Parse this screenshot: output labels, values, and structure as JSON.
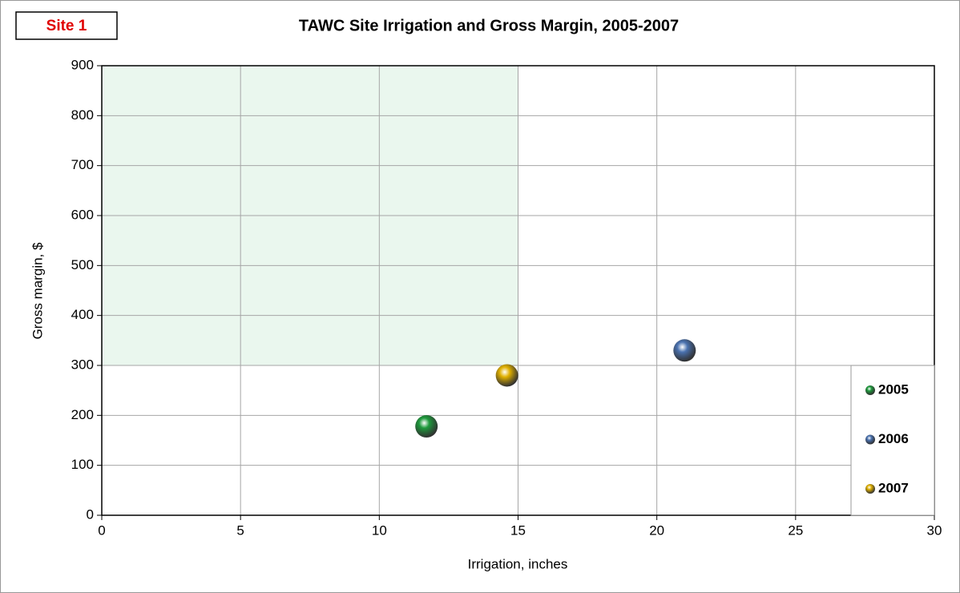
{
  "annotation": "Site 1",
  "chart_data": {
    "type": "scatter",
    "title": "TAWC Site Irrigation and Gross Margin, 2005-2007",
    "x_label": "Irrigation, inches",
    "y_label": "Gross margin, $",
    "xlim": [
      0,
      30
    ],
    "xticks": [
      0,
      5,
      10,
      15,
      20,
      25,
      30
    ],
    "ylim": [
      0,
      900
    ],
    "yticks": [
      0,
      100,
      200,
      300,
      400,
      500,
      600,
      700,
      800,
      900
    ],
    "grid": true,
    "legend": "lower right",
    "shaded_region": {
      "x": [
        0,
        15
      ],
      "y": [
        300,
        900
      ],
      "color": "#eaf7ee"
    },
    "series": [
      {
        "name": "2005",
        "color": "#1e9a3c",
        "x": [
          11.7
        ],
        "values": [
          178
        ]
      },
      {
        "name": "2006",
        "color": "#4a72b0",
        "x": [
          21.0
        ],
        "values": [
          330
        ]
      },
      {
        "name": "2007",
        "color": "#e0b000",
        "x": [
          14.6
        ],
        "values": [
          280
        ]
      }
    ]
  }
}
